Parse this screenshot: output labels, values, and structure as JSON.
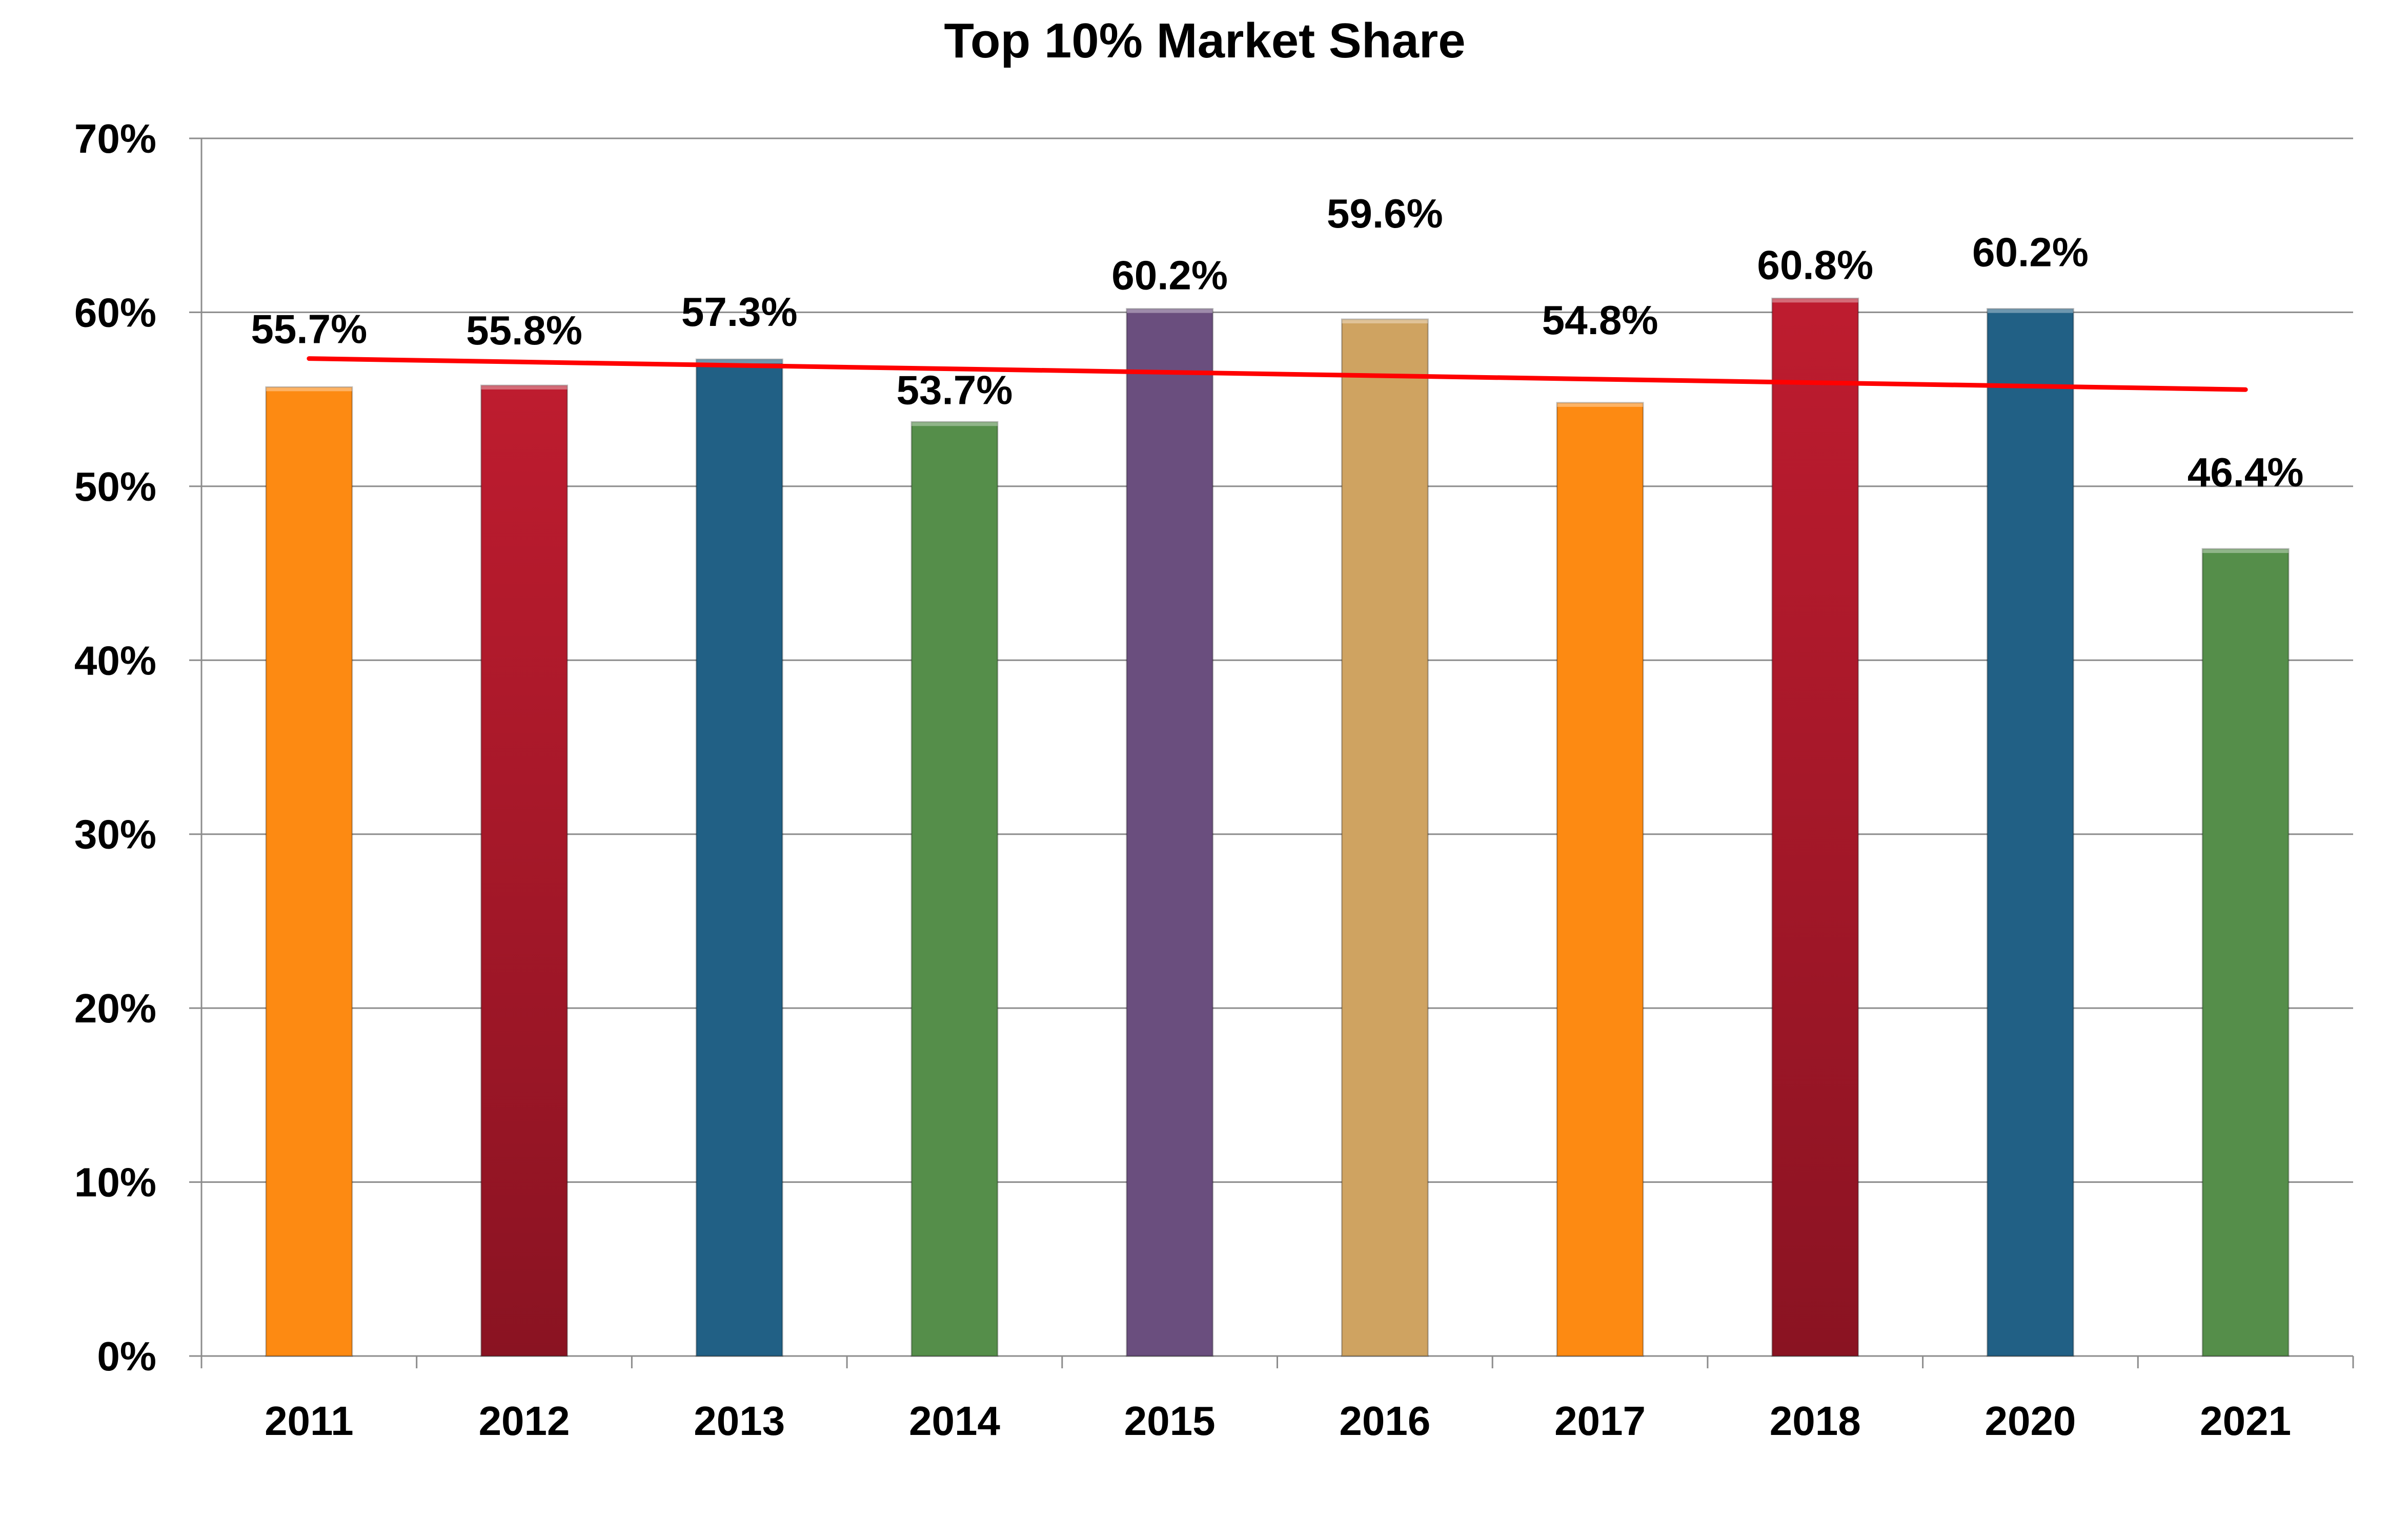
{
  "chart_data": {
    "type": "bar",
    "title": "Top 10% Market Share",
    "xlabel": "",
    "ylabel": "",
    "categories": [
      "2011",
      "2012",
      "2013",
      "2014",
      "2015",
      "2016",
      "2017",
      "2018",
      "2020",
      "2021"
    ],
    "values": [
      55.7,
      55.8,
      57.3,
      53.7,
      60.2,
      59.6,
      54.8,
      60.8,
      60.2,
      46.4
    ],
    "data_labels": [
      "55.7%",
      "55.8%",
      "57.3%",
      "53.7%",
      "60.2%",
      "59.6%",
      "54.8%",
      "60.8%",
      "60.2%",
      "46.4%"
    ],
    "bar_colors": [
      "#FD8A12",
      "#BB1B2E",
      "#216085",
      "#558E4A",
      "#6A4E7E",
      "#CFA361",
      "#FD8A12",
      "#BB1B2E",
      "#216085",
      "#558E4A"
    ],
    "ylim": [
      0,
      70
    ],
    "yticks": [
      0,
      10,
      20,
      30,
      40,
      50,
      60,
      70
    ],
    "ytick_labels": [
      "0%",
      "10%",
      "20%",
      "30%",
      "40%",
      "50%",
      "60%",
      "70%"
    ],
    "grid": true,
    "legend": "none",
    "trendline": {
      "type": "linear",
      "color": "#FF0000"
    }
  }
}
